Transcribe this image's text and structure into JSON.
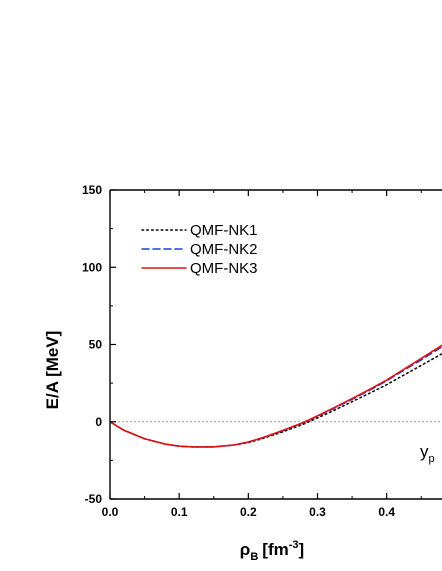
{
  "chart_data": {
    "type": "line",
    "title": "",
    "xlabel": "ρB [fm-3]",
    "xlabel_main": "ρ",
    "xlabel_sub": "B",
    "xlabel_unit": "[fm",
    "xlabel_sup": "-3",
    "xlabel_close": "]",
    "ylabel": "E/A [MeV]",
    "xlim": [
      0.0,
      0.48
    ],
    "ylim": [
      -50,
      150
    ],
    "xticks": [
      "0.0",
      "0.1",
      "0.2",
      "0.3",
      "0.4"
    ],
    "yticks": [
      "-50",
      "0",
      "50",
      "100",
      "150"
    ],
    "grid": false,
    "legend_position": "top-left",
    "reference_line": {
      "y": 0,
      "style": "dotted",
      "color": "#999999"
    },
    "annotation": {
      "text": "y",
      "sub": "p"
    },
    "series": [
      {
        "name": "QMF-NK1",
        "style": "dotted",
        "color": "#000000",
        "x": [
          0.0,
          0.02,
          0.05,
          0.08,
          0.1,
          0.12,
          0.15,
          0.18,
          0.2,
          0.22,
          0.25,
          0.28,
          0.3,
          0.32,
          0.35,
          0.38,
          0.4,
          0.42,
          0.45,
          0.48
        ],
        "y": [
          0,
          -5.5,
          -11,
          -14.5,
          -15.8,
          -16.3,
          -16.3,
          -15,
          -13.5,
          -11,
          -6.5,
          -1.5,
          2.5,
          6.5,
          13,
          19.5,
          24,
          29,
          36.5,
          44
        ]
      },
      {
        "name": "QMF-NK2",
        "style": "dashed",
        "color": "#1f3fd6",
        "x": [
          0.0,
          0.02,
          0.05,
          0.08,
          0.1,
          0.12,
          0.15,
          0.18,
          0.2,
          0.22,
          0.25,
          0.28,
          0.3,
          0.32,
          0.35,
          0.38,
          0.4,
          0.42,
          0.45,
          0.48
        ],
        "y": [
          0,
          -5.5,
          -11,
          -14.5,
          -15.8,
          -16.3,
          -16.3,
          -15,
          -13.2,
          -10.5,
          -5.8,
          -0.6,
          3.5,
          7.8,
          14.5,
          21.5,
          26.5,
          32,
          40,
          48.5
        ]
      },
      {
        "name": "QMF-NK3",
        "style": "solid",
        "color": "#e01010",
        "x": [
          0.0,
          0.02,
          0.05,
          0.08,
          0.1,
          0.12,
          0.15,
          0.18,
          0.2,
          0.22,
          0.25,
          0.28,
          0.3,
          0.32,
          0.35,
          0.38,
          0.4,
          0.42,
          0.45,
          0.48
        ],
        "y": [
          0,
          -5.5,
          -11,
          -14.5,
          -15.8,
          -16.3,
          -16.3,
          -15,
          -13.1,
          -10.4,
          -5.6,
          -0.4,
          3.8,
          8.2,
          15,
          22,
          27,
          32.6,
          41,
          49.5
        ]
      }
    ]
  }
}
